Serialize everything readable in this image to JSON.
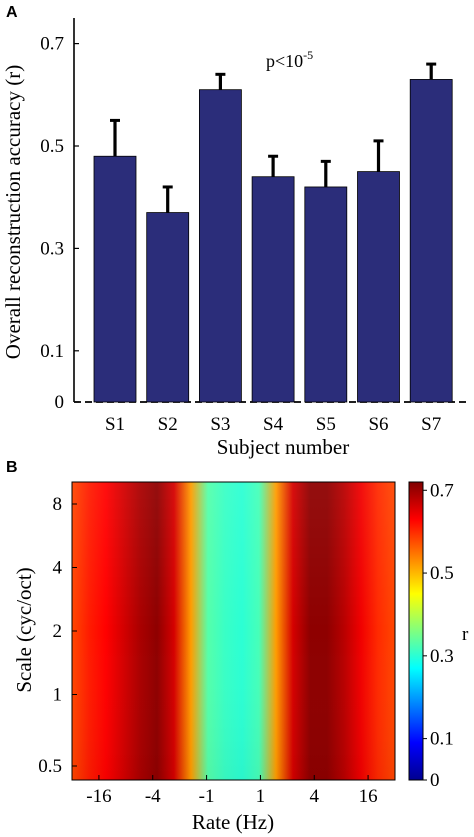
{
  "chart_data": [
    {
      "panel": "A",
      "type": "bar",
      "categories": [
        "S1",
        "S2",
        "S3",
        "S4",
        "S5",
        "S6",
        "S7"
      ],
      "values": [
        0.48,
        0.37,
        0.61,
        0.44,
        0.42,
        0.45,
        0.63
      ],
      "error_upper": [
        0.55,
        0.42,
        0.64,
        0.48,
        0.47,
        0.51,
        0.66
      ],
      "xlabel": "Subject number",
      "ylabel": "Overall reconstruction accuracy (r)",
      "ylim": [
        0,
        0.75
      ],
      "yticks": [
        "0",
        "0.1",
        "0.3",
        "0.5",
        "0.7"
      ],
      "ytick_values": [
        0,
        0.1,
        0.3,
        0.5,
        0.7
      ],
      "annotation": {
        "base": "p<10",
        "exponent": "-5"
      },
      "bar_color": "#2b2d7a",
      "grid": false
    },
    {
      "panel": "B",
      "type": "heatmap",
      "xlabel": "Rate (Hz)",
      "ylabel": "Scale (cyc/oct)",
      "xticks": [
        "-16",
        "-4",
        "-1",
        "1",
        "4",
        "16"
      ],
      "yticks": [
        "8",
        "4",
        "2",
        "1",
        "0.5"
      ],
      "colorbar_label": "r",
      "colorbar_ticks": [
        "0.7",
        "0.5",
        "0.3",
        "0.1",
        "0"
      ],
      "colorbar_tick_values": [
        0.7,
        0.5,
        0.3,
        0.1,
        0
      ],
      "clim": [
        0,
        0.72
      ],
      "colormap": "jet",
      "rate_profile": {
        "note_values": "r as a function of rate across columns (left to right), approximately constant over scale",
        "values": [
          0.58,
          0.61,
          0.63,
          0.66,
          0.69,
          0.71,
          0.66,
          0.52,
          0.33,
          0.31,
          0.3,
          0.32,
          0.52,
          0.66,
          0.71,
          0.71,
          0.68,
          0.64,
          0.6,
          0.58
        ]
      }
    }
  ]
}
